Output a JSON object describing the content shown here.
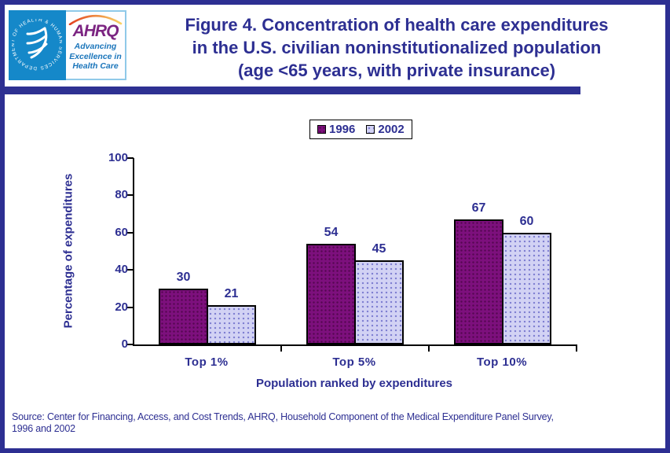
{
  "figure": {
    "title_lines": [
      "Figure 4. Concentration of health care expenditures",
      "in the U.S. civilian noninstitutionalized population",
      "(age <65 years, with private insurance)"
    ]
  },
  "logo": {
    "hhs_seal_text": "DEPARTMENT OF HEALTH & HUMAN SERVICES · USA",
    "ahrq_acronym": "AHRQ",
    "ahrq_tagline_lines": [
      "Advancing",
      "Excellence in",
      "Health Care"
    ]
  },
  "legend": {
    "items": [
      {
        "label": "1996",
        "color": "#7D107D"
      },
      {
        "label": "2002",
        "color": "#D2D2F4"
      }
    ]
  },
  "chart_data": {
    "type": "bar",
    "title": "Figure 4. Concentration of health care expenditures in the U.S. civilian noninstitutionalized population (age <65 years, with private insurance)",
    "categories": [
      "Top 1%",
      "Top 5%",
      "Top 10%"
    ],
    "series": [
      {
        "name": "1996",
        "color": "#7D107D",
        "values": [
          30,
          54,
          67
        ]
      },
      {
        "name": "2002",
        "color": "#D2D2F4",
        "values": [
          21,
          45,
          60
        ]
      }
    ],
    "xlabel": "Population ranked by expenditures",
    "ylabel": "Percentage of expenditures",
    "ylim": [
      0,
      100
    ],
    "yticks": [
      0,
      20,
      40,
      60,
      80,
      100
    ],
    "grid": false,
    "legend_position": "top-center",
    "bar_value_labels": true
  },
  "source": {
    "lines": [
      "Source: Center for Financing, Access, and Cost Trends, AHRQ, Household Component of the Medical Expenditure Panel Survey,",
      "1996 and 2002"
    ]
  },
  "colors": {
    "accent_navy": "#2D2F92",
    "page_border": "#2D2F92",
    "axis_black": "#000000",
    "hhs_blue": "#1588C9",
    "ahrq_purple": "#7B2482",
    "tagline_blue": "#1B75BB"
  }
}
